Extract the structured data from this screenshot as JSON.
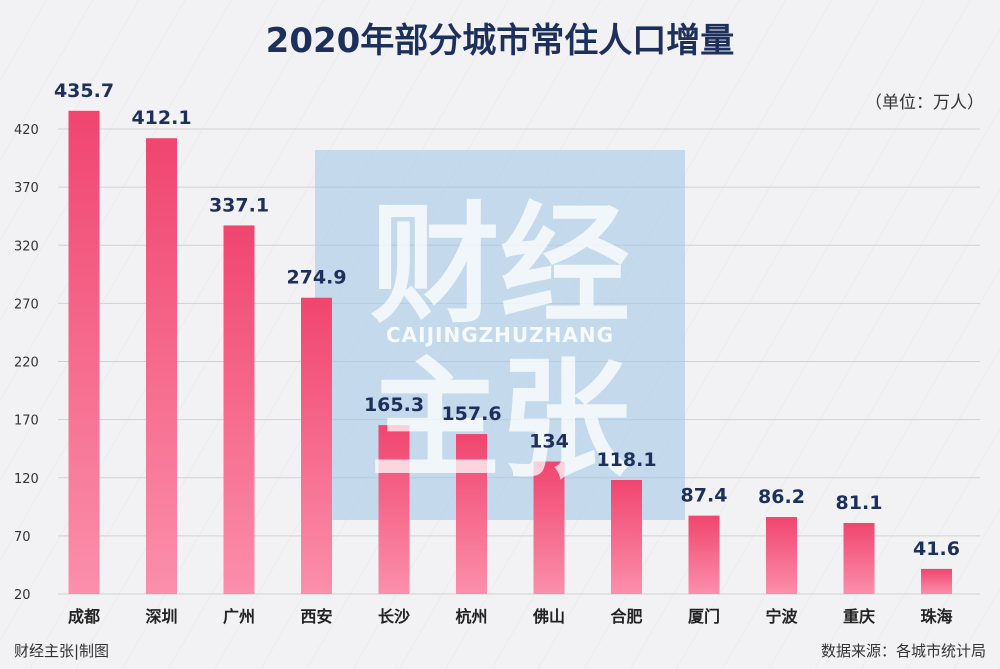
{
  "chart_data": {
    "type": "bar",
    "title": "2020年部分城市常住人口增量",
    "unit": "（单位：万人）",
    "categories": [
      "成都",
      "深圳",
      "广州",
      "西安",
      "长沙",
      "杭州",
      "佛山",
      "合肥",
      "厦门",
      "宁波",
      "重庆",
      "珠海"
    ],
    "values": [
      435.7,
      412.1,
      337.1,
      274.9,
      165.3,
      157.6,
      134,
      118.1,
      87.4,
      86.2,
      81.1,
      41.6
    ],
    "value_labels": [
      "435.7",
      "412.1",
      "337.1",
      "274.9",
      "165.3",
      "157.6",
      "134",
      "118.1",
      "87.4",
      "86.2",
      "81.1",
      "41.6"
    ],
    "yticks": [
      20,
      70,
      120,
      170,
      220,
      270,
      320,
      370,
      420
    ],
    "ylim": [
      20,
      445
    ],
    "grid": true,
    "bar_color_top": "#f0456f",
    "bar_color_bottom": "#fb8fab"
  },
  "watermark": {
    "line1": "财经",
    "line2": "CAIJINGZHUZHANG",
    "line3": "主张",
    "color": "#9ec6e6"
  },
  "footer": {
    "left": "财经主张|制图",
    "right": "数据来源：各城市统计局"
  }
}
